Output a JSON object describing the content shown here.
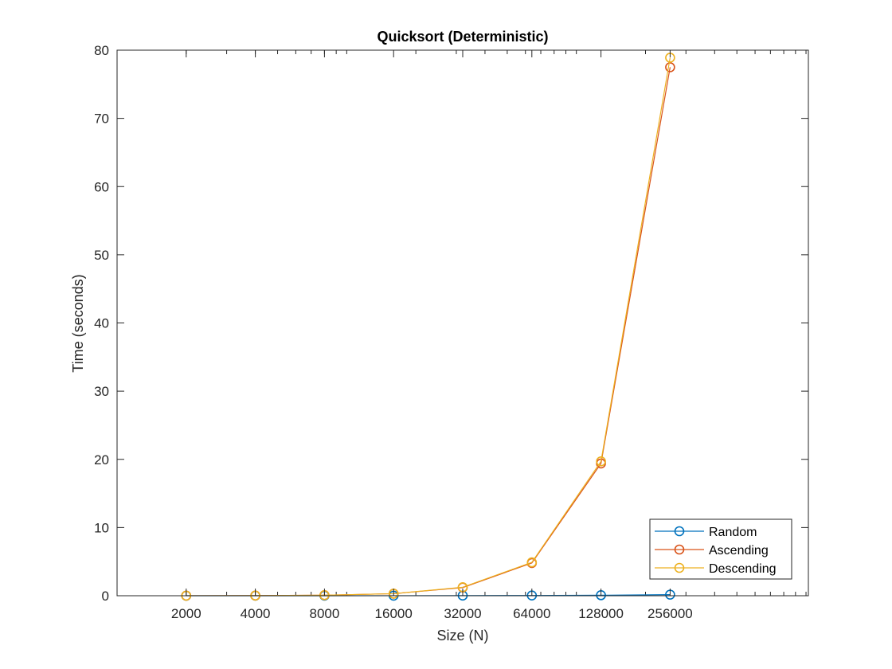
{
  "chart_data": {
    "type": "line",
    "title": "Quicksort (Deterministic)",
    "xlabel": "Size (N)",
    "ylabel": "Time (seconds)",
    "x_scale": "log2",
    "categories": [
      "2000",
      "4000",
      "8000",
      "16000",
      "32000",
      "64000",
      "128000",
      "256000"
    ],
    "xlim": [
      1000,
      1024000
    ],
    "ylim": [
      0,
      80
    ],
    "yticks": [
      0,
      10,
      20,
      30,
      40,
      50,
      60,
      70,
      80
    ],
    "grid": false,
    "legend_position": "bottom-right",
    "series": [
      {
        "name": "Random",
        "color": "#0072BD",
        "marker": "circle",
        "values": [
          0.001,
          0.002,
          0.004,
          0.008,
          0.017,
          0.036,
          0.075,
          0.16
        ]
      },
      {
        "name": "Ascending",
        "color": "#D95319",
        "marker": "circle",
        "values": [
          0.005,
          0.02,
          0.08,
          0.3,
          1.2,
          4.8,
          19.4,
          77.5
        ]
      },
      {
        "name": "Descending",
        "color": "#EDB120",
        "marker": "circle",
        "values": [
          0.005,
          0.02,
          0.08,
          0.3,
          1.25,
          4.9,
          19.7,
          78.9
        ]
      }
    ]
  }
}
